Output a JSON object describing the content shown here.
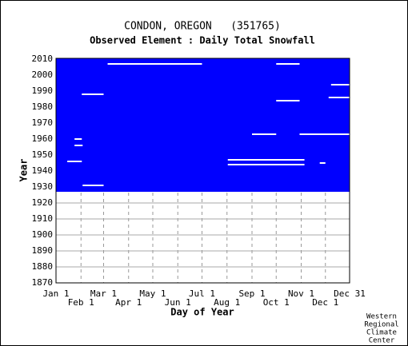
{
  "chart_data": {
    "type": "coverage",
    "title": "CONDON, OREGON   (351765)",
    "subtitle": "Observed Element : Daily Total Snowfall",
    "x_label": "Day of Year",
    "y_label": "Year",
    "footer": [
      "Western",
      "Regional",
      "Climate",
      "Center"
    ],
    "color": "#0000ff",
    "xlim": [
      1,
      365
    ],
    "ylim": [
      1870,
      2010
    ],
    "xticks": [
      {
        "value": 1,
        "label": "Jan 1"
      },
      {
        "value": 32,
        "label": "Feb 1"
      },
      {
        "value": 60,
        "label": "Mar 1"
      },
      {
        "value": 91,
        "label": "Apr 1"
      },
      {
        "value": 121,
        "label": "May 1"
      },
      {
        "value": 152,
        "label": "Jun 1"
      },
      {
        "value": 182,
        "label": "Jul 1"
      },
      {
        "value": 213,
        "label": "Aug 1"
      },
      {
        "value": 244,
        "label": "Sep 1"
      },
      {
        "value": 274,
        "label": "Oct 1"
      },
      {
        "value": 305,
        "label": "Nov 1"
      },
      {
        "value": 335,
        "label": "Dec 1"
      },
      {
        "value": 365,
        "label": "Dec 31"
      }
    ],
    "yticks": [
      1870,
      1880,
      1890,
      1900,
      1910,
      1920,
      1930,
      1940,
      1950,
      1960,
      1970,
      1980,
      1990,
      2000,
      2010
    ],
    "coverage": {
      "start_year": 1927,
      "end_year": 2010
    },
    "missing": [
      {
        "year": 2007,
        "start": 65,
        "end": 182
      },
      {
        "year": 2007,
        "start": 274,
        "end": 303
      },
      {
        "year": 1988,
        "start": 33,
        "end": 60
      },
      {
        "year": 1986,
        "start": 339,
        "end": 365
      },
      {
        "year": 1994,
        "start": 342,
        "end": 365
      },
      {
        "year": 1984,
        "start": 274,
        "end": 303
      },
      {
        "year": 1963,
        "start": 244,
        "end": 274
      },
      {
        "year": 1963,
        "start": 303,
        "end": 365
      },
      {
        "year": 1960,
        "start": 24,
        "end": 33
      },
      {
        "year": 1956,
        "start": 24,
        "end": 34
      },
      {
        "year": 1947,
        "start": 214,
        "end": 309
      },
      {
        "year": 1944,
        "start": 214,
        "end": 309
      },
      {
        "year": 1946,
        "start": 15,
        "end": 33
      },
      {
        "year": 1945,
        "start": 328,
        "end": 335
      },
      {
        "year": 1931,
        "start": 34,
        "end": 60
      }
    ]
  }
}
